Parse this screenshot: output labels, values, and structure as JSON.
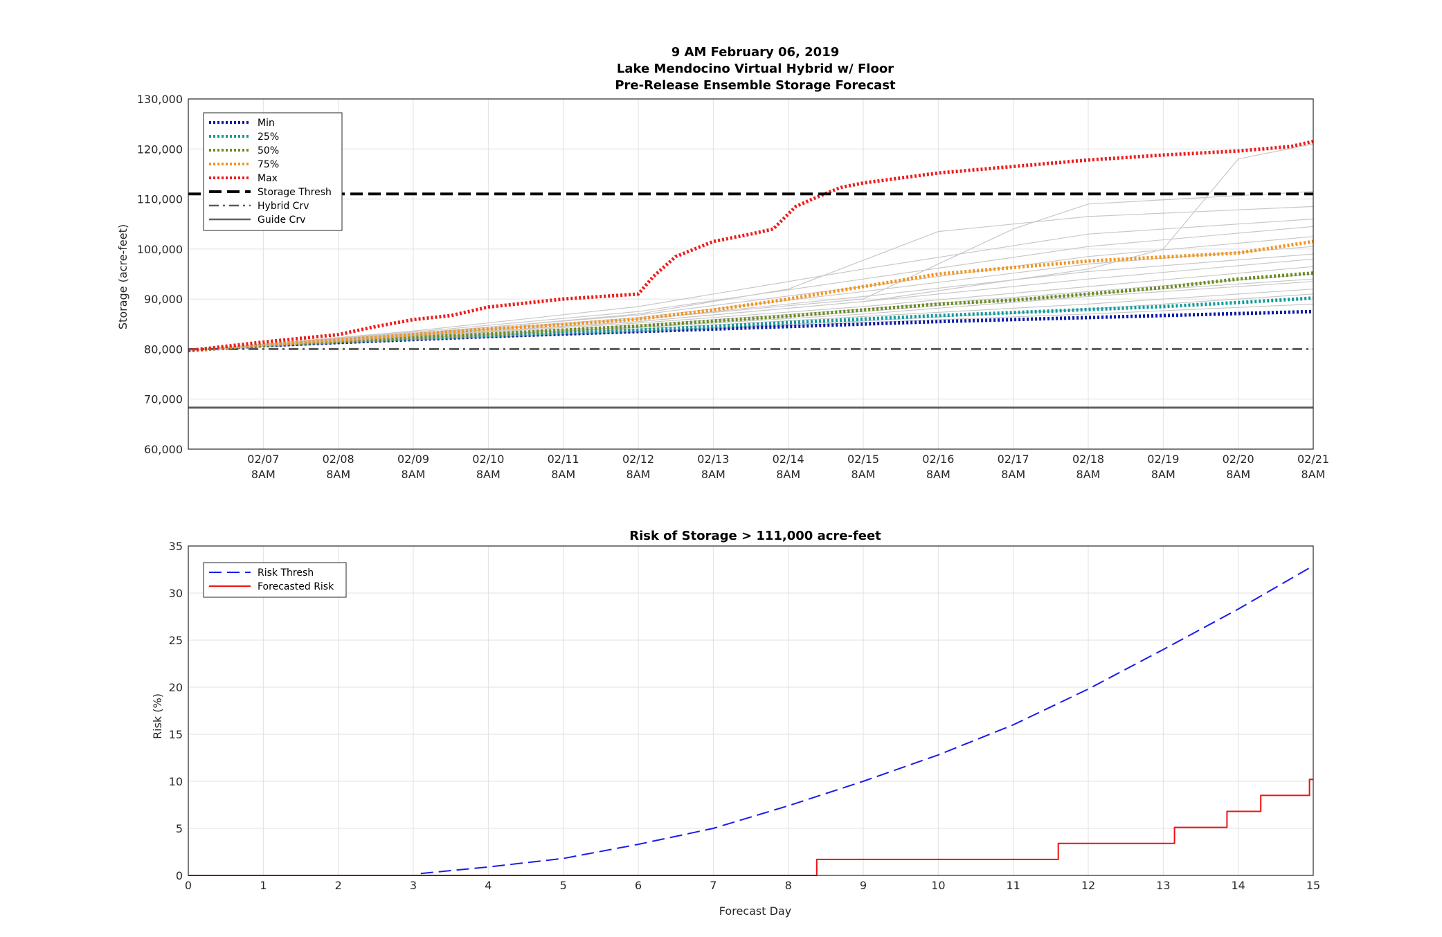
{
  "chart_data": [
    {
      "type": "line",
      "title_lines": [
        "9 AM February 06, 2019",
        "Lake Mendocino Virtual Hybrid w/ Floor",
        "Pre-Release Ensemble Storage Forecast"
      ],
      "ylabel": "Storage (acre-feet)",
      "xlabel": "",
      "xlim": [
        0,
        15
      ],
      "ylim": [
        60000,
        130000
      ],
      "grid": true,
      "legend_position": "top-left",
      "yticks": [
        60000,
        70000,
        80000,
        90000,
        100000,
        110000,
        120000,
        130000
      ],
      "ytick_labels": [
        "60,000",
        "70,000",
        "80,000",
        "90,000",
        "100,000",
        "110,000",
        "120,000",
        "130,000"
      ],
      "xticks": [
        1,
        2,
        3,
        4,
        5,
        6,
        7,
        8,
        9,
        10,
        11,
        12,
        13,
        14,
        15
      ],
      "xtick_labels": [
        [
          "02/07",
          "8AM"
        ],
        [
          "02/08",
          "8AM"
        ],
        [
          "02/09",
          "8AM"
        ],
        [
          "02/10",
          "8AM"
        ],
        [
          "02/11",
          "8AM"
        ],
        [
          "02/12",
          "8AM"
        ],
        [
          "02/13",
          "8AM"
        ],
        [
          "02/14",
          "8AM"
        ],
        [
          "02/15",
          "8AM"
        ],
        [
          "02/16",
          "8AM"
        ],
        [
          "02/17",
          "8AM"
        ],
        [
          "02/18",
          "8AM"
        ],
        [
          "02/19",
          "8AM"
        ],
        [
          "02/20",
          "8AM"
        ],
        [
          "02/21",
          "8AM"
        ]
      ],
      "series": [
        {
          "name": "Min",
          "color": "#0a1aa8",
          "style": "dotted",
          "x": [
            0,
            1,
            2,
            3,
            4,
            5,
            6,
            7,
            8,
            9,
            10,
            11,
            12,
            13,
            14,
            15
          ],
          "y": [
            79700,
            80700,
            81300,
            81900,
            82500,
            83000,
            83500,
            84000,
            84500,
            85000,
            85500,
            85900,
            86300,
            86700,
            87100,
            87500
          ]
        },
        {
          "name": "25%",
          "color": "#0f9a9a",
          "style": "dotted",
          "x": [
            0,
            1,
            2,
            3,
            4,
            5,
            6,
            7,
            8,
            9,
            10,
            11,
            12,
            13,
            14,
            15
          ],
          "y": [
            79700,
            80800,
            81500,
            82100,
            82700,
            83300,
            83800,
            84500,
            85300,
            86000,
            86700,
            87300,
            87900,
            88500,
            89300,
            90200
          ]
        },
        {
          "name": "50%",
          "color": "#6b8c21",
          "style": "dotted",
          "x": [
            0,
            1,
            2,
            3,
            4,
            5,
            6,
            7,
            8,
            9,
            10,
            11,
            12,
            13,
            14,
            15
          ],
          "y": [
            79700,
            80800,
            81500,
            82300,
            83000,
            83800,
            84600,
            85600,
            86600,
            87800,
            89000,
            89800,
            91000,
            92300,
            94000,
            95200
          ]
        },
        {
          "name": "75%",
          "color": "#f39420",
          "style": "dotted",
          "x": [
            0,
            1,
            2,
            3,
            4,
            5,
            6,
            7,
            8,
            9,
            10,
            11,
            12,
            13,
            14,
            15
          ],
          "y": [
            79700,
            80900,
            81800,
            82900,
            84000,
            84900,
            86000,
            87800,
            90000,
            92500,
            95000,
            96300,
            97600,
            98400,
            99200,
            101500
          ]
        },
        {
          "name": "Max",
          "color": "#ee1c1c",
          "style": "dotted",
          "x": [
            0,
            1,
            2,
            2.5,
            3,
            3.5,
            4,
            5,
            6,
            6.2,
            6.5,
            7,
            7.5,
            7.8,
            8.1,
            8.4,
            8.7,
            9,
            10,
            11,
            12,
            13,
            14,
            14.7,
            15
          ],
          "y": [
            79700,
            81400,
            82900,
            84500,
            85900,
            86700,
            88400,
            90000,
            91000,
            94500,
            98500,
            101500,
            103000,
            104000,
            108500,
            110500,
            112300,
            113200,
            115200,
            116500,
            117800,
            118800,
            119600,
            120500,
            121500
          ]
        },
        {
          "name": "Storage Thresh",
          "color": "#000000",
          "style": "dashed",
          "x": [
            0,
            15
          ],
          "y": [
            111000,
            111000
          ]
        },
        {
          "name": "Hybrid Crv",
          "color": "#5a5a5a",
          "style": "dashdot",
          "x": [
            0,
            15
          ],
          "y": [
            80000,
            80000
          ]
        },
        {
          "name": "Guide Crv",
          "color": "#606060",
          "style": "solid",
          "x": [
            0,
            15
          ],
          "y": [
            68300,
            68300
          ]
        }
      ],
      "ensemble_members": [
        {
          "x": [
            0,
            3,
            6,
            9,
            12,
            15
          ],
          "y": [
            79700,
            81900,
            83600,
            85600,
            88000,
            91000
          ]
        },
        {
          "x": [
            0,
            3,
            6,
            9,
            12,
            15
          ],
          "y": [
            79700,
            82000,
            84000,
            86500,
            89000,
            92000
          ]
        },
        {
          "x": [
            0,
            3,
            6,
            9,
            12,
            15
          ],
          "y": [
            79700,
            82200,
            84300,
            87000,
            90500,
            93500
          ]
        },
        {
          "x": [
            0,
            3,
            6,
            9,
            12,
            15
          ],
          "y": [
            79700,
            82300,
            84800,
            88000,
            91500,
            95000
          ]
        },
        {
          "x": [
            0,
            3,
            6,
            9,
            12,
            15
          ],
          "y": [
            79700,
            82500,
            85200,
            88500,
            92500,
            96500
          ]
        },
        {
          "x": [
            0,
            3,
            6,
            9,
            12,
            15
          ],
          "y": [
            79700,
            82700,
            85500,
            89500,
            94000,
            98000
          ]
        },
        {
          "x": [
            0,
            3,
            6,
            9,
            12,
            15
          ],
          "y": [
            79700,
            82900,
            86000,
            90500,
            95500,
            99000
          ]
        },
        {
          "x": [
            0,
            3,
            6,
            9,
            12,
            15
          ],
          "y": [
            79700,
            83000,
            86300,
            91500,
            97000,
            100500
          ]
        },
        {
          "x": [
            0,
            3,
            6,
            9,
            12,
            15
          ],
          "y": [
            79700,
            83200,
            86800,
            92500,
            98500,
            102500
          ]
        },
        {
          "x": [
            0,
            3,
            6,
            9,
            12,
            15
          ],
          "y": [
            79700,
            83400,
            87500,
            94000,
            100500,
            104500
          ]
        },
        {
          "x": [
            0,
            3,
            6,
            9,
            12,
            15
          ],
          "y": [
            79700,
            83600,
            88500,
            96000,
            103000,
            106000
          ]
        },
        {
          "x": [
            0,
            3,
            6,
            8,
            10,
            12,
            15
          ],
          "y": [
            79700,
            83000,
            87000,
            92000,
            103500,
            106500,
            108500
          ]
        },
        {
          "x": [
            0,
            3,
            6,
            9,
            11,
            12,
            15
          ],
          "y": [
            79700,
            82800,
            86000,
            90000,
            104000,
            109000,
            111500
          ]
        },
        {
          "x": [
            0,
            3,
            6,
            9,
            12,
            13,
            14,
            15
          ],
          "y": [
            79700,
            82600,
            85500,
            89500,
            96000,
            100000,
            118000,
            121000
          ]
        },
        {
          "x": [
            0,
            3,
            6,
            9,
            12,
            15
          ],
          "y": [
            79700,
            81800,
            83400,
            85300,
            87000,
            89000
          ]
        },
        {
          "x": [
            0,
            3,
            6,
            9,
            12,
            15
          ],
          "y": [
            79700,
            82100,
            84500,
            87500,
            91000,
            94000
          ]
        }
      ]
    },
    {
      "type": "line",
      "title": "Risk of Storage > 111,000 acre-feet",
      "xlabel": "Forecast Day",
      "ylabel": "Risk (%)",
      "xlim": [
        0,
        15
      ],
      "ylim": [
        0,
        35
      ],
      "grid": true,
      "legend_position": "top-left",
      "xticks": [
        0,
        1,
        2,
        3,
        4,
        5,
        6,
        7,
        8,
        9,
        10,
        11,
        12,
        13,
        14,
        15
      ],
      "yticks": [
        0,
        5,
        10,
        15,
        20,
        25,
        30,
        35
      ],
      "series": [
        {
          "name": "Risk Thresh",
          "color": "#1a1aee",
          "style": "dashed",
          "x": [
            3.1,
            4,
            5,
            6,
            7,
            8,
            9,
            10,
            11,
            12,
            13,
            14,
            15
          ],
          "y": [
            0.2,
            0.9,
            1.8,
            3.3,
            5.0,
            7.4,
            10.0,
            12.8,
            16.0,
            19.8,
            24.0,
            28.3,
            32.9
          ]
        },
        {
          "name": "Forecasted Risk",
          "color": "#ee1111",
          "style": "solid",
          "x": [
            0,
            8.38,
            8.38,
            11.6,
            11.6,
            13.15,
            13.15,
            13.85,
            13.85,
            14.3,
            14.3,
            14.95,
            14.95,
            15
          ],
          "y": [
            0,
            0,
            1.7,
            1.7,
            3.4,
            3.4,
            5.1,
            5.1,
            6.8,
            6.8,
            8.5,
            8.5,
            10.2,
            10.2
          ]
        }
      ]
    }
  ]
}
